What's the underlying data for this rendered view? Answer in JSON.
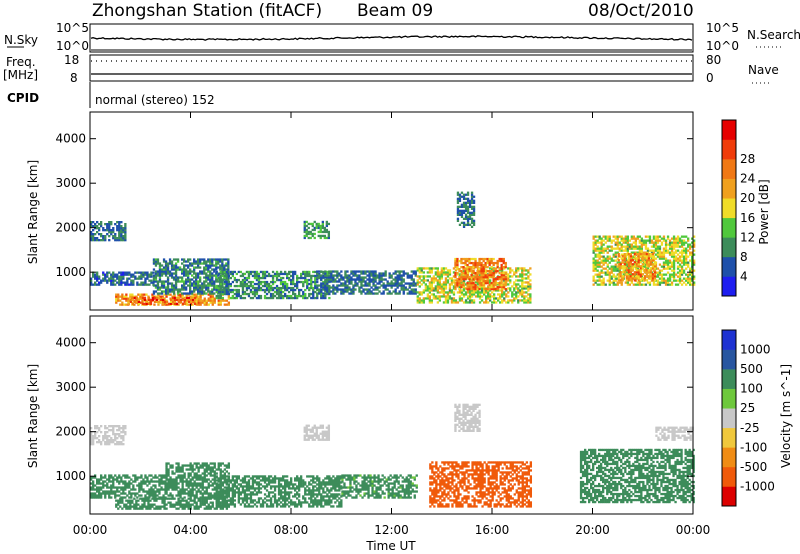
{
  "header": {
    "station": "Zhongshan Station (fitACF)",
    "beam": "Beam 09",
    "date": "08/Oct/2010"
  },
  "panels": {
    "nsky_label": "N.Sky",
    "nsearch_label": "N.Search",
    "freq_label_1": "Freq.",
    "freq_label_2": "[MHz]",
    "nave_label": "Nave",
    "cpid_label": "CPID",
    "cpid_text": "normal (stereo) 152",
    "nsky_tick_top": "10^5",
    "nsky_tick_bottom": "10^0",
    "nsearch_tick_top": "10^5",
    "nsearch_tick_bottom": "10^0",
    "freq_tick_top": "18",
    "freq_tick_bottom": "8",
    "nave_tick_top": "80",
    "nave_tick_bottom": "0"
  },
  "colors": {
    "power": [
      "#1e1ef0",
      "#1e50aa",
      "#3c8c5a",
      "#50c83c",
      "#f0dc28",
      "#f0a01e",
      "#f07814",
      "#f03c0a",
      "#e60000"
    ],
    "velocity": [
      "#dc0000",
      "#f05a0a",
      "#f08c14",
      "#f0c83c",
      "#c8c8c8",
      "#6ec83c",
      "#3c8c5a",
      "#2856a0",
      "#1e32d2"
    ]
  },
  "chart_data": [
    {
      "type": "heatmap",
      "quantity": "Power",
      "ylabel": "Slant Range [km]",
      "y_ticks": [
        "1000",
        "2000",
        "3000",
        "4000"
      ],
      "ylim": [
        150,
        4600
      ],
      "x_ticks": [
        "00:00",
        "04:00",
        "08:00",
        "12:00",
        "16:00",
        "20:00",
        "00:00"
      ],
      "colorbar_label": "Power [dB]",
      "colorbar_ticks": [
        "4",
        "8",
        "12",
        "16",
        "20",
        "24",
        "28"
      ],
      "regions": [
        {
          "t": [
            0.0,
            2.5
          ],
          "r": [
            700,
            1000
          ],
          "v": 7
        },
        {
          "t": [
            0.0,
            1.4
          ],
          "r": [
            1700,
            2150
          ],
          "v": 8
        },
        {
          "t": [
            1.0,
            5.5
          ],
          "r": [
            250,
            480
          ],
          "v": 23
        },
        {
          "t": [
            1.5,
            4.2
          ],
          "r": [
            270,
            420
          ],
          "v": 27
        },
        {
          "t": [
            2.5,
            5.5
          ],
          "r": [
            500,
            1300
          ],
          "v": 9
        },
        {
          "t": [
            5.0,
            9.5
          ],
          "r": [
            400,
            1000
          ],
          "v": 10
        },
        {
          "t": [
            8.5,
            9.5
          ],
          "r": [
            1750,
            2150
          ],
          "v": 11
        },
        {
          "t": [
            9.0,
            13.0
          ],
          "r": [
            500,
            1000
          ],
          "v": 8
        },
        {
          "t": [
            13.0,
            17.5
          ],
          "r": [
            300,
            1100
          ],
          "v": 17
        },
        {
          "t": [
            14.5,
            16.5
          ],
          "r": [
            600,
            1300
          ],
          "v": 25
        },
        {
          "t": [
            14.6,
            15.3
          ],
          "r": [
            2000,
            2800
          ],
          "v": 8
        },
        {
          "t": [
            20.0,
            24.0
          ],
          "r": [
            700,
            1800
          ],
          "v": 17
        },
        {
          "t": [
            21.0,
            22.5
          ],
          "r": [
            800,
            1400
          ],
          "v": 23
        }
      ]
    },
    {
      "type": "heatmap",
      "quantity": "Velocity",
      "ylabel": "Slant Range [km]",
      "y_ticks": [
        "1000",
        "2000",
        "3000",
        "4000"
      ],
      "ylim": [
        150,
        4600
      ],
      "x_ticks": [
        "00:00",
        "04:00",
        "08:00",
        "12:00",
        "16:00",
        "20:00",
        "00:00"
      ],
      "xlabel": "Time UT",
      "colorbar_label": "Velocity [m s^-1]",
      "colorbar_ticks": [
        "1000",
        "500",
        "100",
        "25",
        "-25",
        "-100",
        "-500",
        "-1000"
      ],
      "regions": [
        {
          "t": [
            0.0,
            1.4
          ],
          "r": [
            1700,
            2150
          ],
          "v": 0
        },
        {
          "t": [
            0.0,
            3.0
          ],
          "r": [
            500,
            1000
          ],
          "v": 150
        },
        {
          "t": [
            1.0,
            5.5
          ],
          "r": [
            250,
            480
          ],
          "v": 200
        },
        {
          "t": [
            3.0,
            5.5
          ],
          "r": [
            500,
            1300
          ],
          "v": 400
        },
        {
          "t": [
            5.0,
            10.0
          ],
          "r": [
            300,
            1000
          ],
          "v": 150
        },
        {
          "t": [
            8.5,
            9.5
          ],
          "r": [
            1800,
            2150
          ],
          "v": 0
        },
        {
          "t": [
            10.0,
            13.0
          ],
          "r": [
            500,
            1000
          ],
          "v": 120
        },
        {
          "t": [
            13.5,
            17.5
          ],
          "r": [
            300,
            1300
          ],
          "v": -200
        },
        {
          "t": [
            14.5,
            15.5
          ],
          "r": [
            2000,
            2600
          ],
          "v": 0
        },
        {
          "t": [
            19.5,
            24.0
          ],
          "r": [
            400,
            1600
          ],
          "v": 150
        },
        {
          "t": [
            22.5,
            24.0
          ],
          "r": [
            1800,
            2100
          ],
          "v": 0
        }
      ]
    }
  ]
}
